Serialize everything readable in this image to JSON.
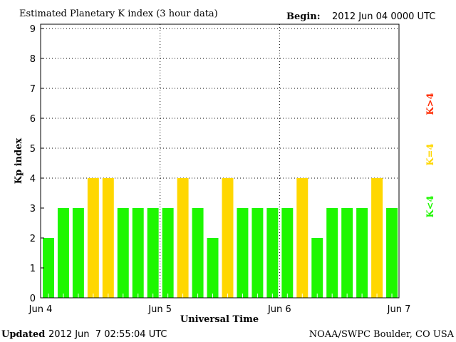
{
  "chart_data": {
    "type": "bar",
    "title": "Estimated Planetary K index (3 hour data)",
    "begin_label": "Begin:",
    "begin_value": "2012 Jun 04 0000 UTC",
    "xlabel": "Universal Time",
    "ylabel": "Kp index",
    "ylim": [
      0,
      9
    ],
    "yticks": [
      "0",
      "1",
      "2",
      "3",
      "4",
      "5",
      "6",
      "7",
      "8",
      "9"
    ],
    "xticks": [
      "Jun 4",
      "Jun 5",
      "Jun 6",
      "Jun 7"
    ],
    "grid": true,
    "values": [
      2,
      3,
      3,
      4,
      4,
      3,
      3,
      3,
      3,
      4,
      3,
      2,
      4,
      3,
      3,
      3,
      3,
      4,
      2,
      3,
      3,
      3,
      4,
      3
    ],
    "colors": {
      "below": "#1ef700",
      "equal": "#ffd700",
      "above": "#ff2a00"
    },
    "legend": [
      {
        "label": "K<4",
        "color": "#1ef700"
      },
      {
        "label": "K=4",
        "color": "#ffd700"
      },
      {
        "label": "K>4",
        "color": "#ff2a00"
      }
    ],
    "legend_placement": "right"
  },
  "footer": {
    "updated_label": "Updated",
    "updated_value": "2012 Jun  7 02:55:04 UTC",
    "source": "NOAA/SWPC Boulder, CO USA"
  }
}
